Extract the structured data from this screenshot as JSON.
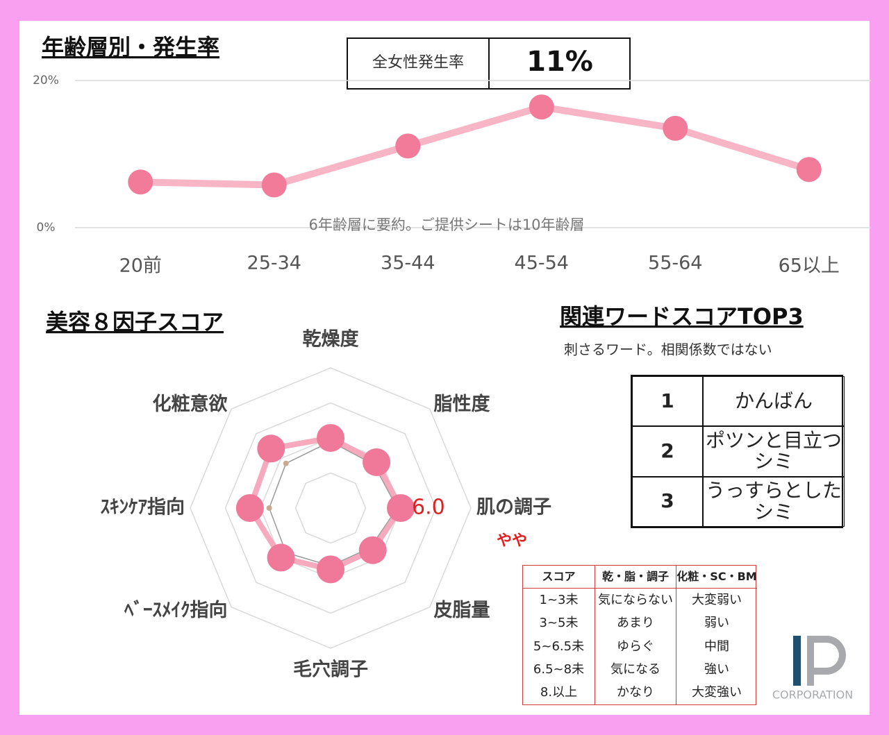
{
  "overall_rate": {
    "label": "全女性発生率",
    "value": "11%"
  },
  "chart_data": [
    {
      "type": "line",
      "title": "年齢層別・発生率",
      "categories": [
        "20前",
        "25-34",
        "35-44",
        "45-54",
        "55-64",
        "65以上"
      ],
      "series": [
        {
          "color": "#f7b5c6",
          "marker_color": "#f27b99",
          "values": [
            6.2,
            5.8,
            11.1,
            16.4,
            13.5,
            7.9
          ]
        }
      ],
      "ylim": [
        0,
        20
      ],
      "yticks": [
        {
          "value": 0,
          "label": "0%"
        },
        {
          "value": 20,
          "label": "20%"
        }
      ],
      "grid": true,
      "annotation": "6年齢層に要約。ご提供シートは10年齢層"
    },
    {
      "type": "radar",
      "title": "美容８因子スコア",
      "categories": [
        "乾燥度",
        "脂性度",
        "肌の調子",
        "皮脂量",
        "毛穴調子",
        "ﾍﾞｰｽﾒｲｸ指向",
        "ｽｷﾝｹｱ指向",
        "化粧意欲"
      ],
      "series": [
        {
          "color": "#f7a9bd",
          "marker_color": "#f07898",
          "values": [
            6.0,
            5.7,
            6.0,
            5.4,
            5.5,
            6.0,
            6.6,
            6.8
          ],
          "value_labels": [
            null,
            null,
            "6.0",
            null,
            null,
            null,
            null,
            null
          ]
        },
        {
          "color": "#999999",
          "marker_color": "#c9a98f",
          "values": [
            5.8,
            5.5,
            5.8,
            5.2,
            5.3,
            5.6,
            5.5,
            5.6
          ]
        }
      ],
      "ylim": [
        2,
        10
      ],
      "yticks": [
        4,
        6,
        8,
        10
      ],
      "grid": true,
      "annotation": "やや"
    }
  ],
  "related_words": {
    "title": "関連ワードスコアTOP3",
    "subtitle": "刺さるワード。相関係数ではない",
    "rows": [
      [
        "1",
        "かんばん"
      ],
      [
        "2",
        "ポツンと目立つシミ"
      ],
      [
        "3",
        "うっすらとしたシミ"
      ]
    ]
  },
  "score_table": {
    "header": [
      "スコア",
      "乾・脂・調子",
      "化粧・SC・BM"
    ],
    "rows": [
      [
        "1~3未",
        "気にならない",
        "大変弱い"
      ],
      [
        "3~5未",
        "あまり",
        "弱い"
      ],
      [
        "5~6.5未",
        "ゆらぐ",
        "中間"
      ],
      [
        "6.5~8未",
        "気になる",
        "強い"
      ],
      [
        "8.以上",
        "かなり",
        "大変強い"
      ]
    ]
  },
  "logo": {
    "text": "CORPORATION"
  }
}
